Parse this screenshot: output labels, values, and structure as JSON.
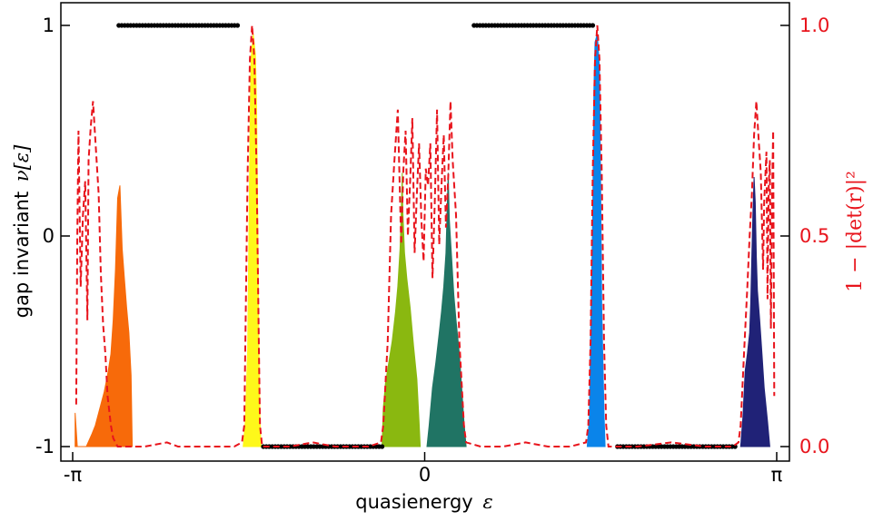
{
  "chart_data": {
    "type": "line",
    "title": "",
    "xlabel": "quasienergy",
    "xlabel_symbol": "ε",
    "ylabel_left": "gap invariant",
    "ylabel_left_symbol": "ν[ε]",
    "ylabel_right": "1 − |det(r)|²",
    "xlim": [
      -3.14159,
      3.14159
    ],
    "ylim_left": [
      -1,
      1
    ],
    "ylim_right": [
      0,
      1
    ],
    "x_ticks": [
      {
        "value": -3.14159,
        "label": "-π"
      },
      {
        "value": 0,
        "label": "0"
      },
      {
        "value": 3.14159,
        "label": "π"
      }
    ],
    "y_left_ticks": [
      {
        "value": 1,
        "label": "1"
      },
      {
        "value": 0,
        "label": "0"
      },
      {
        "value": -1,
        "label": "-1"
      }
    ],
    "y_right_ticks": [
      {
        "value": 1,
        "label": "1.0"
      },
      {
        "value": 0.5,
        "label": "0.5"
      },
      {
        "value": 0,
        "label": "0.0"
      }
    ],
    "right_axis_color": "#e8141c",
    "gap_invariant_segments": [
      {
        "x_start": -2.73,
        "x_end": -1.67,
        "value": 1
      },
      {
        "x_start": -1.44,
        "x_end": -0.38,
        "value": -1
      },
      {
        "x_start": 0.44,
        "x_end": 1.5,
        "value": 1
      },
      {
        "x_start": 1.72,
        "x_end": 2.77,
        "value": -1
      }
    ],
    "bands": [
      {
        "color": "#f76a0a",
        "points": [
          [
            -3.12,
            0.08
          ],
          [
            -3.1,
            0.0
          ],
          [
            -3.02,
            0.0
          ],
          [
            -2.97,
            0.03
          ],
          [
            -2.94,
            0.05
          ],
          [
            -2.9,
            0.09
          ],
          [
            -2.86,
            0.13
          ],
          [
            -2.83,
            0.17
          ],
          [
            -2.8,
            0.22
          ],
          [
            -2.78,
            0.3
          ],
          [
            -2.76,
            0.42
          ],
          [
            -2.74,
            0.59
          ],
          [
            -2.72,
            0.62
          ],
          [
            -2.7,
            0.47
          ],
          [
            -2.68,
            0.4
          ],
          [
            -2.66,
            0.33
          ],
          [
            -2.64,
            0.27
          ],
          [
            -2.62,
            0.17
          ],
          [
            -2.61,
            0.0
          ]
        ]
      },
      {
        "color": "#fef81a",
        "points": [
          [
            -1.62,
            0.0
          ],
          [
            -1.6,
            0.06
          ],
          [
            -1.58,
            0.23
          ],
          [
            -1.57,
            0.47
          ],
          [
            -1.56,
            0.73
          ],
          [
            -1.55,
            0.92
          ],
          [
            -1.53,
            0.98
          ],
          [
            -1.51,
            0.93
          ],
          [
            -1.5,
            0.8
          ],
          [
            -1.49,
            0.55
          ],
          [
            -1.48,
            0.25
          ],
          [
            -1.47,
            0.06
          ],
          [
            -1.46,
            0.0
          ]
        ]
      },
      {
        "color": "#8ab810",
        "points": [
          [
            -0.38,
            0.0
          ],
          [
            -0.37,
            0.09
          ],
          [
            -0.35,
            0.15
          ],
          [
            -0.32,
            0.2
          ],
          [
            -0.29,
            0.25
          ],
          [
            -0.26,
            0.32
          ],
          [
            -0.24,
            0.38
          ],
          [
            -0.22,
            0.47
          ],
          [
            -0.21,
            0.55
          ],
          [
            -0.2,
            0.65
          ],
          [
            -0.195,
            0.56
          ],
          [
            -0.18,
            0.46
          ],
          [
            -0.16,
            0.4
          ],
          [
            -0.13,
            0.33
          ],
          [
            -0.1,
            0.24
          ],
          [
            -0.07,
            0.16
          ],
          [
            -0.05,
            0.06
          ],
          [
            -0.04,
            0.0
          ]
        ]
      },
      {
        "color": "#207464",
        "points": [
          [
            0.02,
            0.0
          ],
          [
            0.04,
            0.05
          ],
          [
            0.07,
            0.14
          ],
          [
            0.1,
            0.2
          ],
          [
            0.13,
            0.27
          ],
          [
            0.15,
            0.32
          ],
          [
            0.17,
            0.38
          ],
          [
            0.19,
            0.46
          ],
          [
            0.2,
            0.56
          ],
          [
            0.21,
            0.65
          ],
          [
            0.22,
            0.54
          ],
          [
            0.24,
            0.45
          ],
          [
            0.26,
            0.36
          ],
          [
            0.28,
            0.3
          ],
          [
            0.31,
            0.22
          ],
          [
            0.33,
            0.14
          ],
          [
            0.35,
            0.06
          ],
          [
            0.37,
            0.0
          ]
        ]
      },
      {
        "color": "#0a84ea",
        "points": [
          [
            1.45,
            0.0
          ],
          [
            1.47,
            0.07
          ],
          [
            1.48,
            0.26
          ],
          [
            1.5,
            0.56
          ],
          [
            1.51,
            0.85
          ],
          [
            1.52,
            0.96
          ],
          [
            1.54,
            0.98
          ],
          [
            1.56,
            0.9
          ],
          [
            1.57,
            0.62
          ],
          [
            1.58,
            0.33
          ],
          [
            1.6,
            0.08
          ],
          [
            1.61,
            0.0
          ]
        ]
      },
      {
        "color": "#202277",
        "points": [
          [
            2.82,
            0.0
          ],
          [
            2.84,
            0.07
          ],
          [
            2.86,
            0.18
          ],
          [
            2.88,
            0.22
          ],
          [
            2.9,
            0.27
          ],
          [
            2.91,
            0.34
          ],
          [
            2.92,
            0.46
          ],
          [
            2.93,
            0.56
          ],
          [
            2.94,
            0.64
          ],
          [
            2.95,
            0.58
          ],
          [
            2.96,
            0.45
          ],
          [
            2.97,
            0.37
          ],
          [
            2.99,
            0.3
          ],
          [
            3.01,
            0.22
          ],
          [
            3.03,
            0.14
          ],
          [
            3.06,
            0.06
          ],
          [
            3.08,
            0.0
          ]
        ]
      }
    ],
    "reflection_curve": {
      "color": "#e8141c",
      "style": "dashed",
      "points": [
        [
          -3.11,
          0.1
        ],
        [
          -3.1,
          0.5
        ],
        [
          -3.09,
          0.75
        ],
        [
          -3.07,
          0.38
        ],
        [
          -3.05,
          0.55
        ],
        [
          -3.03,
          0.63
        ],
        [
          -3.01,
          0.3
        ],
        [
          -3.0,
          0.68
        ],
        [
          -2.98,
          0.76
        ],
        [
          -2.96,
          0.82
        ],
        [
          -2.94,
          0.73
        ],
        [
          -2.91,
          0.6
        ],
        [
          -2.89,
          0.41
        ],
        [
          -2.87,
          0.29
        ],
        [
          -2.85,
          0.22
        ],
        [
          -2.83,
          0.12
        ],
        [
          -2.8,
          0.05
        ],
        [
          -2.78,
          0.02
        ],
        [
          -2.74,
          0.0
        ],
        [
          -2.65,
          0.0
        ],
        [
          -2.5,
          0.0
        ],
        [
          -2.3,
          0.01
        ],
        [
          -2.2,
          0.0
        ],
        [
          -2.0,
          0.0
        ],
        [
          -1.8,
          0.0
        ],
        [
          -1.7,
          0.0
        ],
        [
          -1.63,
          0.01
        ],
        [
          -1.61,
          0.05
        ],
        [
          -1.6,
          0.25
        ],
        [
          -1.58,
          0.65
        ],
        [
          -1.56,
          0.92
        ],
        [
          -1.54,
          1.0
        ],
        [
          -1.52,
          0.92
        ],
        [
          -1.5,
          0.65
        ],
        [
          -1.48,
          0.25
        ],
        [
          -1.47,
          0.05
        ],
        [
          -1.45,
          0.0
        ],
        [
          -1.2,
          0.0
        ],
        [
          -1.0,
          0.01
        ],
        [
          -0.8,
          0.0
        ],
        [
          -0.5,
          0.0
        ],
        [
          -0.39,
          0.01
        ],
        [
          -0.37,
          0.05
        ],
        [
          -0.33,
          0.25
        ],
        [
          -0.3,
          0.55
        ],
        [
          -0.27,
          0.68
        ],
        [
          -0.24,
          0.8
        ],
        [
          -0.21,
          0.48
        ],
        [
          -0.19,
          0.66
        ],
        [
          -0.17,
          0.75
        ],
        [
          -0.15,
          0.5
        ],
        [
          -0.13,
          0.63
        ],
        [
          -0.11,
          0.78
        ],
        [
          -0.09,
          0.46
        ],
        [
          -0.07,
          0.6
        ],
        [
          -0.05,
          0.72
        ],
        [
          -0.03,
          0.54
        ],
        [
          -0.01,
          0.44
        ],
        [
          0.01,
          0.66
        ],
        [
          0.03,
          0.62
        ],
        [
          0.05,
          0.72
        ],
        [
          0.07,
          0.4
        ],
        [
          0.09,
          0.58
        ],
        [
          0.11,
          0.8
        ],
        [
          0.13,
          0.48
        ],
        [
          0.15,
          0.62
        ],
        [
          0.17,
          0.74
        ],
        [
          0.19,
          0.52
        ],
        [
          0.21,
          0.64
        ],
        [
          0.23,
          0.82
        ],
        [
          0.25,
          0.68
        ],
        [
          0.28,
          0.55
        ],
        [
          0.31,
          0.25
        ],
        [
          0.35,
          0.05
        ],
        [
          0.37,
          0.01
        ],
        [
          0.5,
          0.0
        ],
        [
          0.7,
          0.0
        ],
        [
          0.9,
          0.01
        ],
        [
          1.1,
          0.0
        ],
        [
          1.3,
          0.0
        ],
        [
          1.44,
          0.01
        ],
        [
          1.46,
          0.05
        ],
        [
          1.48,
          0.25
        ],
        [
          1.5,
          0.65
        ],
        [
          1.52,
          0.92
        ],
        [
          1.54,
          1.0
        ],
        [
          1.56,
          0.92
        ],
        [
          1.58,
          0.65
        ],
        [
          1.6,
          0.25
        ],
        [
          1.62,
          0.05
        ],
        [
          1.64,
          0.0
        ],
        [
          1.9,
          0.0
        ],
        [
          2.2,
          0.01
        ],
        [
          2.5,
          0.0
        ],
        [
          2.75,
          0.0
        ],
        [
          2.8,
          0.01
        ],
        [
          2.82,
          0.05
        ],
        [
          2.85,
          0.22
        ],
        [
          2.88,
          0.38
        ],
        [
          2.9,
          0.5
        ],
        [
          2.92,
          0.6
        ],
        [
          2.94,
          0.74
        ],
        [
          2.96,
          0.82
        ],
        [
          2.98,
          0.73
        ],
        [
          3.0,
          0.65
        ],
        [
          3.02,
          0.42
        ],
        [
          3.03,
          0.58
        ],
        [
          3.05,
          0.7
        ],
        [
          3.06,
          0.35
        ],
        [
          3.07,
          0.62
        ],
        [
          3.08,
          0.68
        ],
        [
          3.09,
          0.28
        ],
        [
          3.1,
          0.6
        ],
        [
          3.11,
          0.75
        ],
        [
          3.12,
          0.12
        ]
      ]
    }
  }
}
